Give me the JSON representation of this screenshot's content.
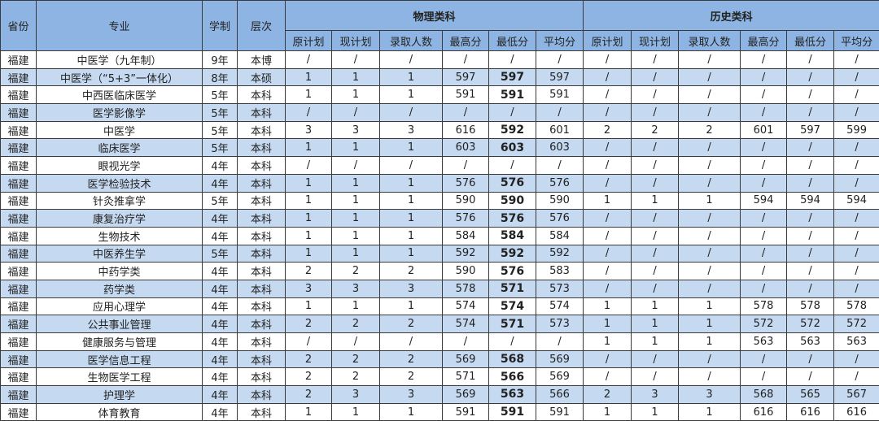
{
  "header": {
    "province": "省份",
    "major": "专业",
    "duration": "学制",
    "level": "层次",
    "group_physics": "物理类科",
    "group_history": "历史类科",
    "sub": [
      "原计划",
      "现计划",
      "录取人数",
      "最高分",
      "最低分",
      "平均分"
    ]
  },
  "colors": {
    "header_bg": "#8db4e2",
    "alt_row_bg": "#c5d9f1",
    "row_bg": "#ffffff"
  },
  "rows": [
    [
      "福建",
      "中医学（九年制）",
      "9年",
      "本博",
      "/",
      "/",
      "/",
      "/",
      "/",
      "/",
      "/",
      "/",
      "/",
      "/",
      "/",
      "/"
    ],
    [
      "福建",
      "中医学（“5+3”一体化）",
      "8年",
      "本硕",
      "1",
      "1",
      "1",
      "597",
      "597",
      "597",
      "/",
      "/",
      "/",
      "/",
      "/",
      "/"
    ],
    [
      "福建",
      "中西医临床医学",
      "5年",
      "本科",
      "1",
      "1",
      "1",
      "591",
      "591",
      "591",
      "/",
      "/",
      "/",
      "/",
      "/",
      "/"
    ],
    [
      "福建",
      "医学影像学",
      "5年",
      "本科",
      "/",
      "/",
      "/",
      "/",
      "/",
      "/",
      "/",
      "/",
      "/",
      "/",
      "/",
      "/"
    ],
    [
      "福建",
      "中医学",
      "5年",
      "本科",
      "3",
      "3",
      "3",
      "616",
      "592",
      "601",
      "2",
      "2",
      "2",
      "601",
      "597",
      "599"
    ],
    [
      "福建",
      "临床医学",
      "5年",
      "本科",
      "1",
      "1",
      "1",
      "603",
      "603",
      "603",
      "/",
      "/",
      "/",
      "/",
      "/",
      "/"
    ],
    [
      "福建",
      "眼视光学",
      "4年",
      "本科",
      "/",
      "/",
      "/",
      "/",
      "/",
      "/",
      "/",
      "/",
      "/",
      "/",
      "/",
      "/"
    ],
    [
      "福建",
      "医学检验技术",
      "4年",
      "本科",
      "1",
      "1",
      "1",
      "576",
      "576",
      "576",
      "/",
      "/",
      "/",
      "/",
      "/",
      "/"
    ],
    [
      "福建",
      "针灸推拿学",
      "5年",
      "本科",
      "1",
      "1",
      "1",
      "590",
      "590",
      "590",
      "1",
      "1",
      "1",
      "594",
      "594",
      "594"
    ],
    [
      "福建",
      "康复治疗学",
      "4年",
      "本科",
      "1",
      "1",
      "1",
      "576",
      "576",
      "576",
      "/",
      "/",
      "/",
      "/",
      "/",
      "/"
    ],
    [
      "福建",
      "生物技术",
      "4年",
      "本科",
      "1",
      "1",
      "1",
      "584",
      "584",
      "584",
      "/",
      "/",
      "/",
      "/",
      "/",
      "/"
    ],
    [
      "福建",
      "中医养生学",
      "5年",
      "本科",
      "1",
      "1",
      "1",
      "592",
      "592",
      "592",
      "/",
      "/",
      "/",
      "/",
      "/",
      "/"
    ],
    [
      "福建",
      "中药学类",
      "4年",
      "本科",
      "2",
      "2",
      "2",
      "590",
      "576",
      "583",
      "/",
      "/",
      "/",
      "/",
      "/",
      "/"
    ],
    [
      "福建",
      "药学类",
      "4年",
      "本科",
      "3",
      "3",
      "3",
      "578",
      "571",
      "573",
      "/",
      "/",
      "/",
      "/",
      "/",
      "/"
    ],
    [
      "福建",
      "应用心理学",
      "4年",
      "本科",
      "1",
      "1",
      "1",
      "574",
      "574",
      "574",
      "1",
      "1",
      "1",
      "578",
      "578",
      "578"
    ],
    [
      "福建",
      "公共事业管理",
      "4年",
      "本科",
      "2",
      "2",
      "2",
      "574",
      "571",
      "573",
      "1",
      "1",
      "1",
      "572",
      "572",
      "572"
    ],
    [
      "福建",
      "健康服务与管理",
      "4年",
      "本科",
      "/",
      "/",
      "/",
      "/",
      "/",
      "/",
      "1",
      "1",
      "1",
      "563",
      "563",
      "563"
    ],
    [
      "福建",
      "医学信息工程",
      "4年",
      "本科",
      "2",
      "2",
      "2",
      "569",
      "568",
      "569",
      "/",
      "/",
      "/",
      "/",
      "/",
      "/"
    ],
    [
      "福建",
      "生物医学工程",
      "4年",
      "本科",
      "2",
      "2",
      "2",
      "571",
      "566",
      "569",
      "/",
      "/",
      "/",
      "/",
      "/",
      "/"
    ],
    [
      "福建",
      "护理学",
      "4年",
      "本科",
      "2",
      "3",
      "3",
      "569",
      "563",
      "566",
      "2",
      "3",
      "3",
      "568",
      "565",
      "567"
    ],
    [
      "福建",
      "体育教育",
      "4年",
      "本科",
      "1",
      "1",
      "1",
      "591",
      "591",
      "591",
      "1",
      "1",
      "1",
      "616",
      "616",
      "616"
    ]
  ]
}
